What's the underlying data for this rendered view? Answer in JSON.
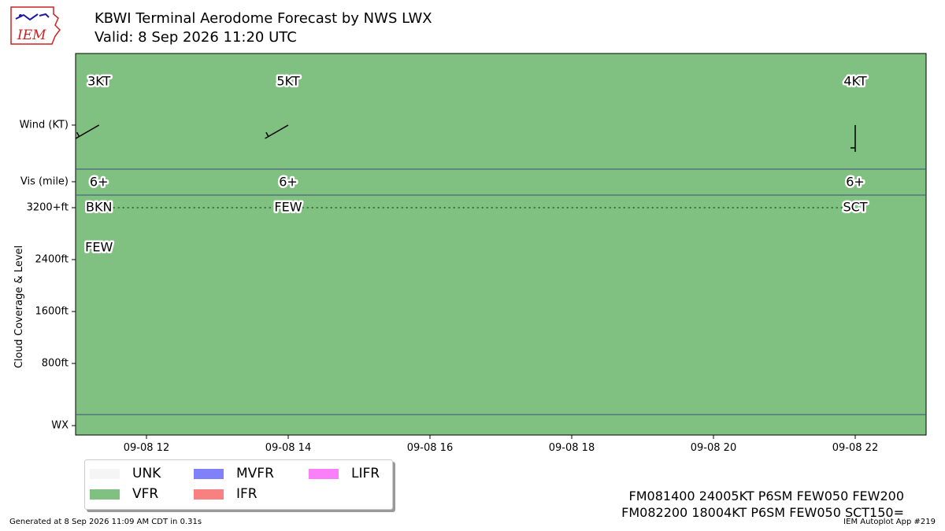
{
  "header": {
    "title": "KBWI Terminal Aerodome Forecast by NWS LWX",
    "subtitle": "Valid: 8 Sep 2026 11:20 UTC",
    "logo_text": "IEM"
  },
  "chart_data": {
    "type": "timeline",
    "background_category": "VFR",
    "x_range": [
      "09-08 11:00",
      "09-08 23:00"
    ],
    "x_ticks": [
      "09-08 12",
      "09-08 14",
      "09-08 16",
      "09-08 18",
      "09-08 20",
      "09-08 22"
    ],
    "x_tick_hours": [
      12,
      14,
      16,
      18,
      20,
      22
    ],
    "y_axis_label": "Cloud Coverage & Level",
    "rows": {
      "wind": "Wind (KT)",
      "vis": "Vis (mile)",
      "wx": "WX"
    },
    "cloud_ticks": [
      {
        "label": "3200+ft",
        "level": 3200
      },
      {
        "label": "2400ft",
        "level": 2400
      },
      {
        "label": "1600ft",
        "level": 1600
      },
      {
        "label": "800ft",
        "level": 800
      }
    ],
    "cloud_ylim": [
      0,
      3200
    ],
    "forecasts": [
      {
        "hour": 11.33,
        "wind_label": "3KT",
        "wind_dir_deg": 240,
        "wind_speed_kt": 3,
        "vis_label": "6+",
        "clouds": [
          {
            "label": "BKN",
            "level": 3200
          },
          {
            "label": "FEW",
            "level": 2500
          }
        ]
      },
      {
        "hour": 14,
        "wind_label": "5KT",
        "wind_dir_deg": 240,
        "wind_speed_kt": 5,
        "vis_label": "6+",
        "clouds": [
          {
            "label": "FEW",
            "level": 3200
          }
        ]
      },
      {
        "hour": 22,
        "wind_label": "4KT",
        "wind_dir_deg": 180,
        "wind_speed_kt": 4,
        "vis_label": "6+",
        "clouds": [
          {
            "label": "SCT",
            "level": 3200
          }
        ]
      }
    ],
    "ceiling_line": {
      "from_hour": 11.33,
      "to_hour": 22,
      "level": 3200,
      "style": "dotted"
    },
    "legend": [
      {
        "label": "UNK",
        "color": "#f5f5f5"
      },
      {
        "label": "VFR",
        "color": "#80c080"
      },
      {
        "label": "MVFR",
        "color": "#8080f9"
      },
      {
        "label": "IFR",
        "color": "#f98080"
      },
      {
        "label": "LIFR",
        "color": "#f980f9"
      }
    ],
    "legend_placement": "bottom-left"
  },
  "taf_text": [
    "FM081400 24005KT P6SM FEW050 FEW200",
    "FM082200 18004KT P6SM FEW050 SCT150="
  ],
  "footer": {
    "generated": "Generated at 8 Sep 2026 11:09 AM CDT in 0.31s",
    "app": "IEM Autoplot App #219"
  }
}
